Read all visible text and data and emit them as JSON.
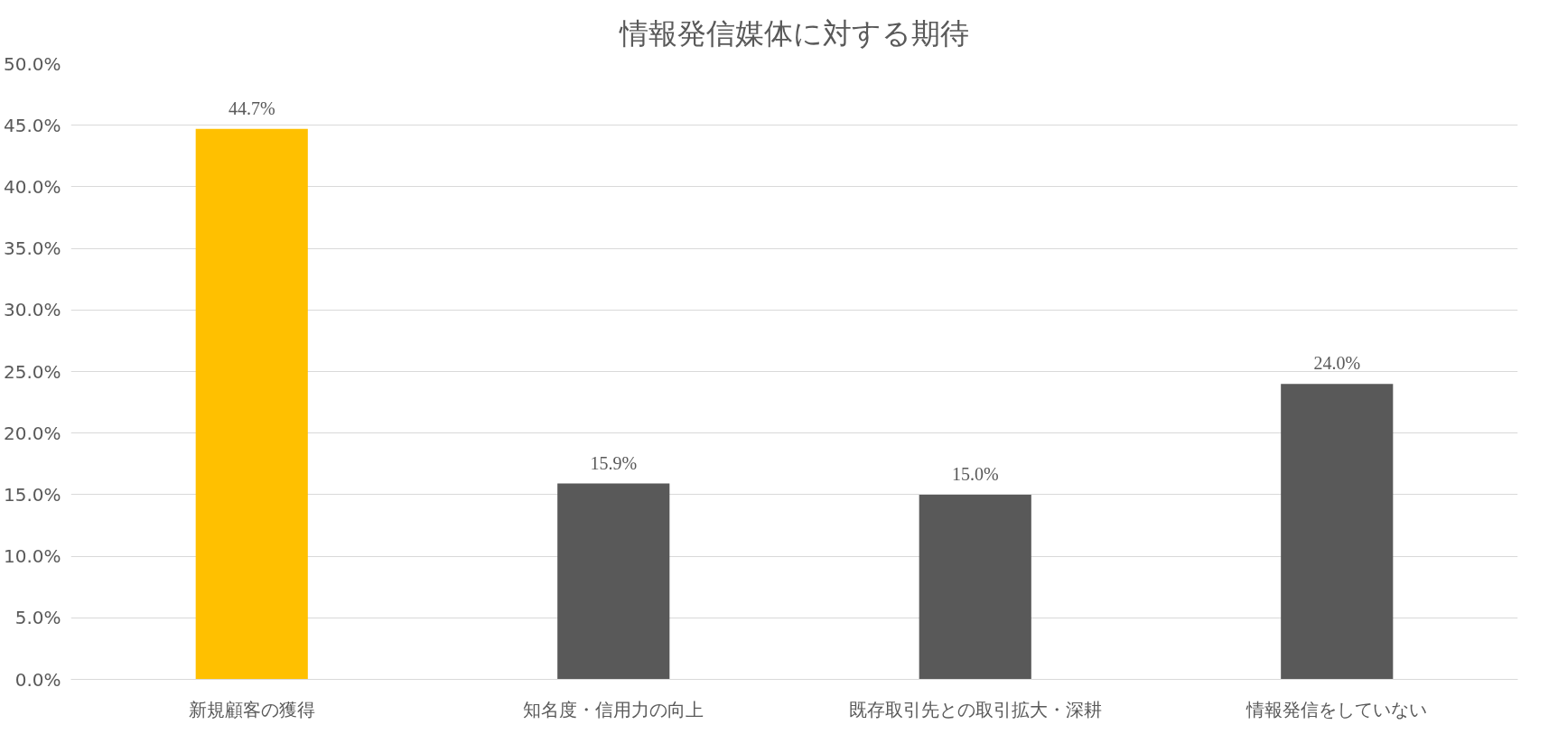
{
  "chart_data": {
    "type": "bar",
    "title": "情報発信媒体に対する期待",
    "categories": [
      "新規顧客の獲得",
      "知名度・信用力の向上",
      "既存取引先との取引拡大・深耕",
      "情報発信をしていない"
    ],
    "values": [
      44.7,
      15.9,
      15.0,
      24.0
    ],
    "colors": [
      "#ffc000",
      "#595959",
      "#595959",
      "#595959"
    ],
    "value_labels": [
      "44.7%",
      "15.9%",
      "15.0%",
      "24.0%"
    ],
    "ylim": [
      0,
      50
    ],
    "yticks": [
      {
        "value": 0,
        "label": "0.0%"
      },
      {
        "value": 5,
        "label": "5.0%"
      },
      {
        "value": 10,
        "label": "10.0%"
      },
      {
        "value": 15,
        "label": "15.0%"
      },
      {
        "value": 20,
        "label": "20.0%"
      },
      {
        "value": 25,
        "label": "25.0%"
      },
      {
        "value": 30,
        "label": "30.0%"
      },
      {
        "value": 35,
        "label": "35.0%"
      },
      {
        "value": 40,
        "label": "40.0%"
      },
      {
        "value": 45,
        "label": "45.0%"
      },
      {
        "value": 50,
        "label": "50.0%"
      }
    ],
    "grid": "y"
  }
}
